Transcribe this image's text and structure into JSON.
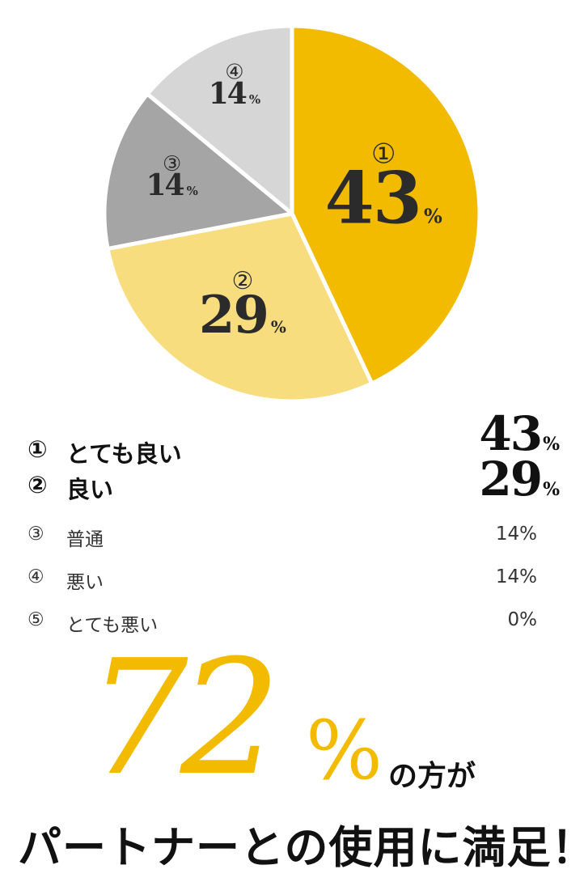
{
  "chart_data": {
    "type": "pie",
    "categories": [
      "①",
      "②",
      "③",
      "④"
    ],
    "values": [
      43,
      29,
      14,
      14
    ],
    "value_labels": [
      "43",
      "29",
      "14",
      "14"
    ],
    "unit": "%",
    "colors": [
      "#f2bb00",
      "#f8dd7e",
      "#a5a5a5",
      "#d6d6d6"
    ]
  },
  "legend": [
    {
      "num": "①",
      "name": "とても良い",
      "pct": "43",
      "unit": "%",
      "style": "bold"
    },
    {
      "num": "②",
      "name": "良い",
      "pct": "29",
      "unit": "%",
      "style": "bold"
    },
    {
      "num": "③",
      "name": "普通",
      "pct": "14%",
      "style": "light"
    },
    {
      "num": "④",
      "name": "悪い",
      "pct": "14%",
      "style": "light"
    },
    {
      "num": "⑤",
      "name": "とても悪い",
      "pct": "0%",
      "style": "light"
    }
  ],
  "headline": {
    "number": "72",
    "unit": "%",
    "suffix": "の方が",
    "bottom": "パートナーとの使用に満足！"
  },
  "accent_color": "#f2bb00"
}
